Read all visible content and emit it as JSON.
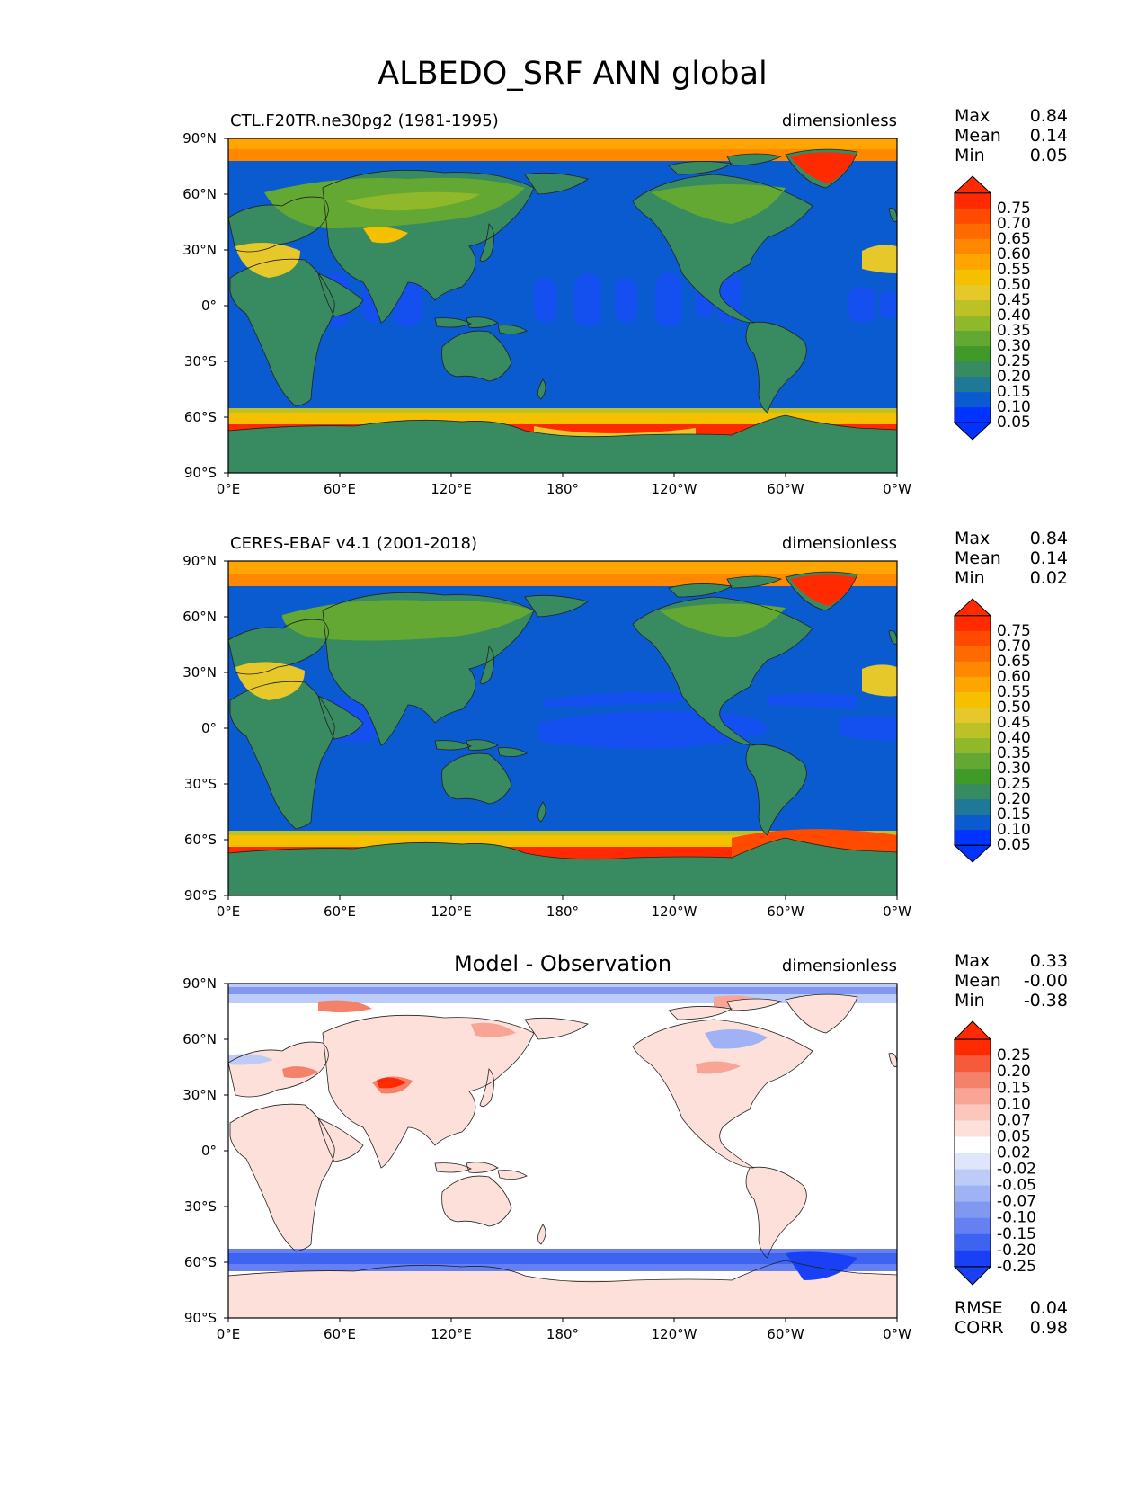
{
  "figure_title": "ALBEDO_SRF ANN global",
  "lat_ticks": [
    "90°N",
    "60°N",
    "30°N",
    "0°",
    "30°S",
    "60°S",
    "90°S"
  ],
  "lon_ticks": [
    "0°E",
    "60°E",
    "120°E",
    "180°",
    "120°W",
    "60°W",
    "0°W"
  ],
  "panels": [
    {
      "left_title": "CTL.F20TR.ne30pg2 (1981-1995)",
      "center_title": "",
      "units": "dimensionless",
      "stats": [
        {
          "label": "Max",
          "value": "0.84"
        },
        {
          "label": "Mean",
          "value": "0.14"
        },
        {
          "label": "Min",
          "value": "0.05"
        }
      ],
      "colorbar_labels": [
        "0.75",
        "0.70",
        "0.65",
        "0.60",
        "0.55",
        "0.50",
        "0.45",
        "0.40",
        "0.35",
        "0.30",
        "0.25",
        "0.20",
        "0.15",
        "0.10",
        "0.05"
      ]
    },
    {
      "left_title": "CERES-EBAF v4.1 (2001-2018)",
      "center_title": "",
      "units": "dimensionless",
      "stats": [
        {
          "label": "Max",
          "value": "0.84"
        },
        {
          "label": "Mean",
          "value": "0.14"
        },
        {
          "label": "Min",
          "value": "0.02"
        }
      ],
      "colorbar_labels": [
        "0.75",
        "0.70",
        "0.65",
        "0.60",
        "0.55",
        "0.50",
        "0.45",
        "0.40",
        "0.35",
        "0.30",
        "0.25",
        "0.20",
        "0.15",
        "0.10",
        "0.05"
      ]
    },
    {
      "left_title": "",
      "center_title": "Model - Observation",
      "units": "dimensionless",
      "stats": [
        {
          "label": "Max",
          "value": "0.33"
        },
        {
          "label": "Mean",
          "value": "-0.00"
        },
        {
          "label": "Min",
          "value": "-0.38"
        }
      ],
      "colorbar_labels": [
        "0.25",
        "0.20",
        "0.15",
        "0.10",
        "0.07",
        "0.05",
        "0.02",
        "-0.02",
        "-0.05",
        "-0.07",
        "-0.10",
        "-0.15",
        "-0.20",
        "-0.25"
      ],
      "metrics": [
        {
          "label": "RMSE",
          "value": "0.04"
        },
        {
          "label": "CORR",
          "value": "0.98"
        }
      ]
    }
  ],
  "colors": {
    "ocean": "#0a5bd0",
    "tropical_ocean": "#1450f0",
    "land_green": "#3f8f5a",
    "vegetation": "#63a832",
    "desert": "#e6c82a",
    "snow": "#f07a12",
    "ice": "#ff2a00",
    "diff_neutral": "#ffffff",
    "diff_pos": "#f4826a",
    "diff_neg": "#3c64f0",
    "albedo_scale": [
      "#ff2a00",
      "#ff4a00",
      "#ff6a00",
      "#ff8800",
      "#ffa500",
      "#f5c000",
      "#e6c82a",
      "#bcc225",
      "#8fb82a",
      "#63a832",
      "#3f9a28",
      "#388a60",
      "#1f7896",
      "#0a5bd0",
      "#0033ff"
    ],
    "diff_scale": [
      "#ff2a00",
      "#f55a3a",
      "#f4826a",
      "#f8a596",
      "#fbc6bb",
      "#fde0da",
      "#ffffff",
      "#dfe6fb",
      "#bcccf7",
      "#9fb2f4",
      "#8198f1",
      "#6680f1",
      "#3c64f0",
      "#1a40f5"
    ]
  }
}
